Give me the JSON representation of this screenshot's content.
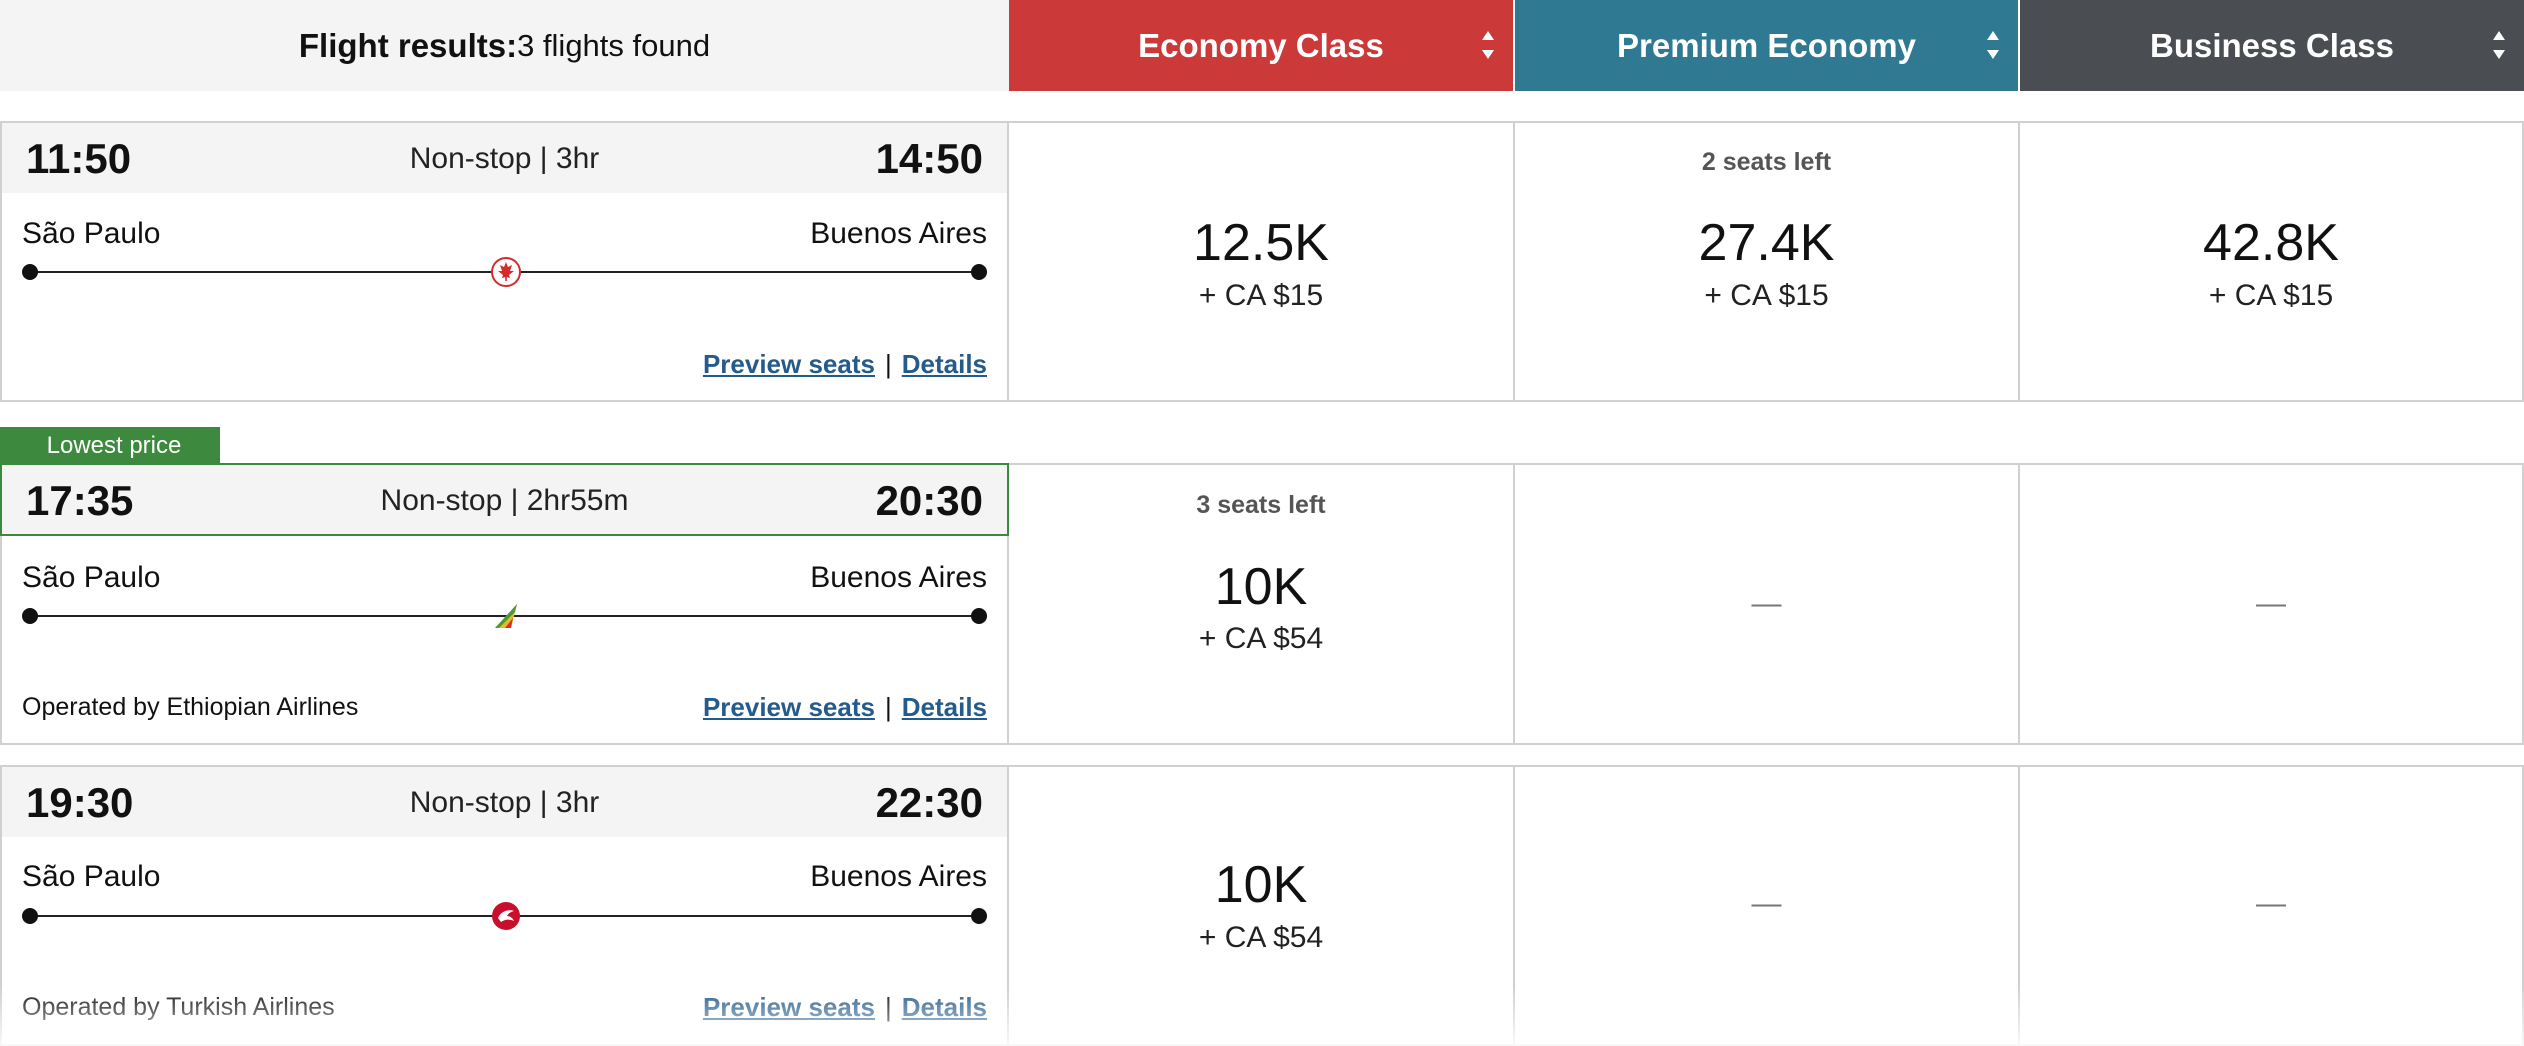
{
  "header": {
    "results_label": "Flight results:",
    "results_count": "3 flights found",
    "cabins": [
      {
        "label": "Economy Class",
        "color": "#cc3939"
      },
      {
        "label": "Premium Economy",
        "color": "#2f7a92"
      },
      {
        "label": "Business Class",
        "color": "#4a4d52"
      }
    ]
  },
  "badge": {
    "label": "Lowest price",
    "color": "#3d8a3f"
  },
  "links": {
    "preview": "Preview seats",
    "separator": "|",
    "details": "Details"
  },
  "flights": [
    {
      "departure": "11:50",
      "duration": "Non-stop | 3hr",
      "arrival": "14:50",
      "origin": "São Paulo",
      "destination": "Buenos Aires",
      "operated_by": "",
      "airline_icon": "maple-leaf-icon",
      "prices": [
        {
          "seats_left": "",
          "points": "12.5K",
          "cash": "+ CA $15"
        },
        {
          "seats_left": "2 seats left",
          "points": "27.4K",
          "cash": "+ CA $15"
        },
        {
          "seats_left": "",
          "points": "42.8K",
          "cash": "+ CA $15"
        }
      ]
    },
    {
      "departure": "17:35",
      "duration": "Non-stop | 2hr55m",
      "arrival": "20:30",
      "origin": "São Paulo",
      "destination": "Buenos Aires",
      "operated_by": "Operated by Ethiopian Airlines",
      "airline_icon": "ethiopian-tail-icon",
      "prices": [
        {
          "seats_left": "3 seats left",
          "points": "10K",
          "cash": "+ CA $54"
        },
        {
          "unavailable": "—"
        },
        {
          "unavailable": "—"
        }
      ]
    },
    {
      "departure": "19:30",
      "duration": "Non-stop | 3hr",
      "arrival": "22:30",
      "origin": "São Paulo",
      "destination": "Buenos Aires",
      "operated_by": "Operated by Turkish Airlines",
      "airline_icon": "turkish-bird-icon",
      "prices": [
        {
          "seats_left": "",
          "points": "10K",
          "cash": "+ CA $54"
        },
        {
          "unavailable": "—"
        },
        {
          "unavailable": "—"
        }
      ]
    }
  ]
}
